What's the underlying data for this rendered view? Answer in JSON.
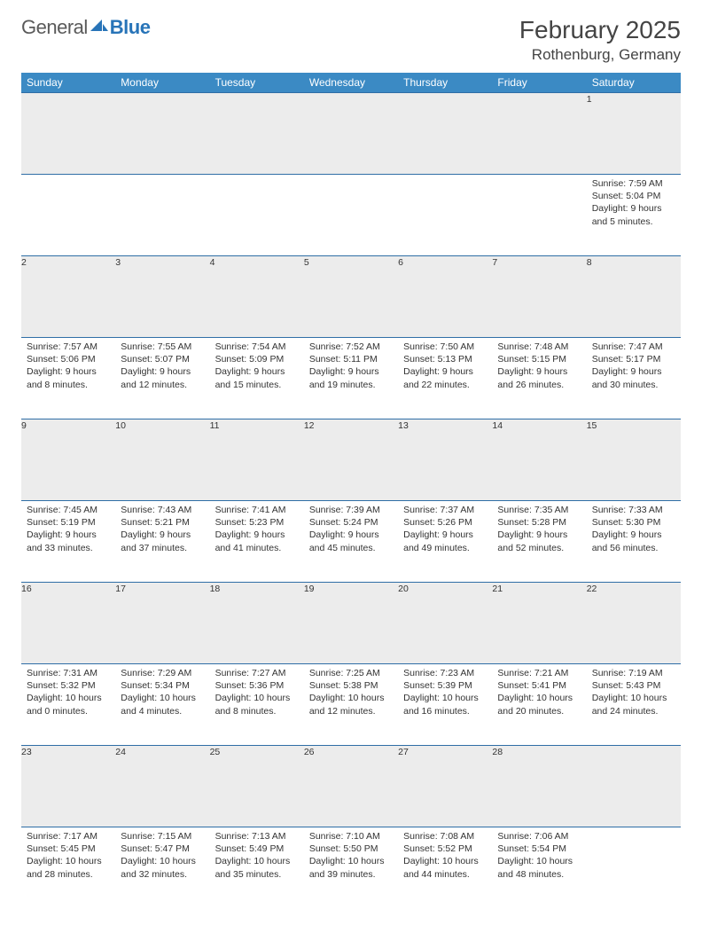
{
  "brand": {
    "text_general": "General",
    "text_blue": "Blue",
    "logo_fill": "#2874b8"
  },
  "title": {
    "month": "February 2025",
    "location": "Rothenburg, Germany"
  },
  "colors": {
    "header_bg": "#3b8ac4",
    "header_text": "#ffffff",
    "row_separator": "#2f6ea6",
    "daynum_bg": "#ececec",
    "body_text": "#333333"
  },
  "weekdays": [
    "Sunday",
    "Monday",
    "Tuesday",
    "Wednesday",
    "Thursday",
    "Friday",
    "Saturday"
  ],
  "weeks": [
    {
      "nums": [
        "",
        "",
        "",
        "",
        "",
        "",
        "1"
      ],
      "cells": [
        null,
        null,
        null,
        null,
        null,
        null,
        {
          "sunrise": "Sunrise: 7:59 AM",
          "sunset": "Sunset: 5:04 PM",
          "daylight": "Daylight: 9 hours and 5 minutes."
        }
      ]
    },
    {
      "nums": [
        "2",
        "3",
        "4",
        "5",
        "6",
        "7",
        "8"
      ],
      "cells": [
        {
          "sunrise": "Sunrise: 7:57 AM",
          "sunset": "Sunset: 5:06 PM",
          "daylight": "Daylight: 9 hours and 8 minutes."
        },
        {
          "sunrise": "Sunrise: 7:55 AM",
          "sunset": "Sunset: 5:07 PM",
          "daylight": "Daylight: 9 hours and 12 minutes."
        },
        {
          "sunrise": "Sunrise: 7:54 AM",
          "sunset": "Sunset: 5:09 PM",
          "daylight": "Daylight: 9 hours and 15 minutes."
        },
        {
          "sunrise": "Sunrise: 7:52 AM",
          "sunset": "Sunset: 5:11 PM",
          "daylight": "Daylight: 9 hours and 19 minutes."
        },
        {
          "sunrise": "Sunrise: 7:50 AM",
          "sunset": "Sunset: 5:13 PM",
          "daylight": "Daylight: 9 hours and 22 minutes."
        },
        {
          "sunrise": "Sunrise: 7:48 AM",
          "sunset": "Sunset: 5:15 PM",
          "daylight": "Daylight: 9 hours and 26 minutes."
        },
        {
          "sunrise": "Sunrise: 7:47 AM",
          "sunset": "Sunset: 5:17 PM",
          "daylight": "Daylight: 9 hours and 30 minutes."
        }
      ]
    },
    {
      "nums": [
        "9",
        "10",
        "11",
        "12",
        "13",
        "14",
        "15"
      ],
      "cells": [
        {
          "sunrise": "Sunrise: 7:45 AM",
          "sunset": "Sunset: 5:19 PM",
          "daylight": "Daylight: 9 hours and 33 minutes."
        },
        {
          "sunrise": "Sunrise: 7:43 AM",
          "sunset": "Sunset: 5:21 PM",
          "daylight": "Daylight: 9 hours and 37 minutes."
        },
        {
          "sunrise": "Sunrise: 7:41 AM",
          "sunset": "Sunset: 5:23 PM",
          "daylight": "Daylight: 9 hours and 41 minutes."
        },
        {
          "sunrise": "Sunrise: 7:39 AM",
          "sunset": "Sunset: 5:24 PM",
          "daylight": "Daylight: 9 hours and 45 minutes."
        },
        {
          "sunrise": "Sunrise: 7:37 AM",
          "sunset": "Sunset: 5:26 PM",
          "daylight": "Daylight: 9 hours and 49 minutes."
        },
        {
          "sunrise": "Sunrise: 7:35 AM",
          "sunset": "Sunset: 5:28 PM",
          "daylight": "Daylight: 9 hours and 52 minutes."
        },
        {
          "sunrise": "Sunrise: 7:33 AM",
          "sunset": "Sunset: 5:30 PM",
          "daylight": "Daylight: 9 hours and 56 minutes."
        }
      ]
    },
    {
      "nums": [
        "16",
        "17",
        "18",
        "19",
        "20",
        "21",
        "22"
      ],
      "cells": [
        {
          "sunrise": "Sunrise: 7:31 AM",
          "sunset": "Sunset: 5:32 PM",
          "daylight": "Daylight: 10 hours and 0 minutes."
        },
        {
          "sunrise": "Sunrise: 7:29 AM",
          "sunset": "Sunset: 5:34 PM",
          "daylight": "Daylight: 10 hours and 4 minutes."
        },
        {
          "sunrise": "Sunrise: 7:27 AM",
          "sunset": "Sunset: 5:36 PM",
          "daylight": "Daylight: 10 hours and 8 minutes."
        },
        {
          "sunrise": "Sunrise: 7:25 AM",
          "sunset": "Sunset: 5:38 PM",
          "daylight": "Daylight: 10 hours and 12 minutes."
        },
        {
          "sunrise": "Sunrise: 7:23 AM",
          "sunset": "Sunset: 5:39 PM",
          "daylight": "Daylight: 10 hours and 16 minutes."
        },
        {
          "sunrise": "Sunrise: 7:21 AM",
          "sunset": "Sunset: 5:41 PM",
          "daylight": "Daylight: 10 hours and 20 minutes."
        },
        {
          "sunrise": "Sunrise: 7:19 AM",
          "sunset": "Sunset: 5:43 PM",
          "daylight": "Daylight: 10 hours and 24 minutes."
        }
      ]
    },
    {
      "nums": [
        "23",
        "24",
        "25",
        "26",
        "27",
        "28",
        ""
      ],
      "cells": [
        {
          "sunrise": "Sunrise: 7:17 AM",
          "sunset": "Sunset: 5:45 PM",
          "daylight": "Daylight: 10 hours and 28 minutes."
        },
        {
          "sunrise": "Sunrise: 7:15 AM",
          "sunset": "Sunset: 5:47 PM",
          "daylight": "Daylight: 10 hours and 32 minutes."
        },
        {
          "sunrise": "Sunrise: 7:13 AM",
          "sunset": "Sunset: 5:49 PM",
          "daylight": "Daylight: 10 hours and 35 minutes."
        },
        {
          "sunrise": "Sunrise: 7:10 AM",
          "sunset": "Sunset: 5:50 PM",
          "daylight": "Daylight: 10 hours and 39 minutes."
        },
        {
          "sunrise": "Sunrise: 7:08 AM",
          "sunset": "Sunset: 5:52 PM",
          "daylight": "Daylight: 10 hours and 44 minutes."
        },
        {
          "sunrise": "Sunrise: 7:06 AM",
          "sunset": "Sunset: 5:54 PM",
          "daylight": "Daylight: 10 hours and 48 minutes."
        },
        null
      ]
    }
  ]
}
